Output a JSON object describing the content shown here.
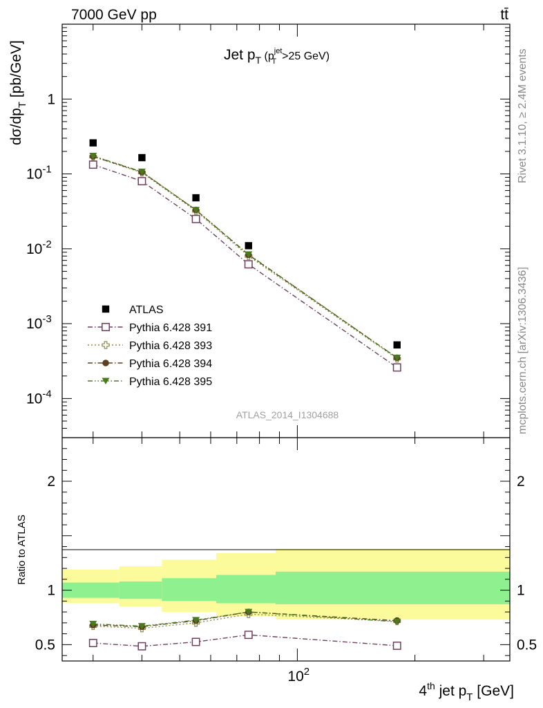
{
  "header": {
    "left": "7000 GeV pp",
    "right": "tt̄"
  },
  "side_labels": {
    "rivet": "Rivet 3.1.10, ≥ 2.4M events",
    "mcplots": "mcplots.cern.ch [arXiv:1306.3436]"
  },
  "chart_data": [
    {
      "type": "scatter",
      "panel": "main",
      "title": "Jet pT (pTjet>25 GeV)",
      "title_main": "Jet p",
      "title_sub": "T",
      "title_paren_open": " (p",
      "title_paren_sup": "jet",
      "title_paren_sub": "T",
      "title_paren_tail": ">25 GeV)",
      "ylabel": "dσ/dpT [pb/GeV]",
      "ylabel_main": "dσ/dp",
      "ylabel_sub": "T",
      "ylabel_tail": " [pb/GeV]",
      "xlabel": "4th jet pT [GeV]",
      "x_scale": "log",
      "y_scale": "log",
      "xlim": [
        25,
        350
      ],
      "ylim": [
        3e-05,
        10
      ],
      "legend_position": "bottom-left",
      "watermark": "ATLAS_2014_I1304688",
      "x": [
        30,
        40,
        55,
        75,
        180
      ],
      "series": [
        {
          "name": "ATLAS",
          "color": "#000000",
          "marker": "square-filled",
          "line": "none",
          "values": [
            0.26,
            0.165,
            0.048,
            0.011,
            0.00052
          ]
        },
        {
          "name": "Pythia 6.428 391",
          "color": "#6b3f5b",
          "marker": "square-open",
          "line": "dashdot",
          "values": [
            0.133,
            0.08,
            0.025,
            0.0062,
            0.00026
          ]
        },
        {
          "name": "Pythia 6.428 393",
          "color": "#8c8c4a",
          "marker": "cross-open",
          "line": "dotted",
          "values": [
            0.17,
            0.104,
            0.032,
            0.008,
            0.00034
          ]
        },
        {
          "name": "Pythia 6.428 394",
          "color": "#5a4021",
          "marker": "circle-filled",
          "line": "dashdot",
          "values": [
            0.172,
            0.106,
            0.033,
            0.0083,
            0.00035
          ]
        },
        {
          "name": "Pythia 6.428 395",
          "color": "#4a7a1e",
          "marker": "triangle-down-filled",
          "line": "dashdotdot",
          "values": [
            0.174,
            0.107,
            0.033,
            0.0084,
            0.00035
          ]
        }
      ]
    },
    {
      "type": "line",
      "panel": "ratio",
      "ylabel": "Ratio to ATLAS",
      "x_scale": "log",
      "xlim": [
        25,
        350
      ],
      "ylim": [
        0.35,
        2.4
      ],
      "bins": [
        {
          "lo": 25,
          "hi": 35,
          "stat_lo": 0.93,
          "stat_hi": 1.07,
          "tot_lo": 0.88,
          "tot_hi": 1.19
        },
        {
          "lo": 35,
          "hi": 45,
          "stat_lo": 0.92,
          "stat_hi": 1.08,
          "tot_lo": 0.85,
          "tot_hi": 1.22
        },
        {
          "lo": 45,
          "hi": 62,
          "stat_lo": 0.9,
          "stat_hi": 1.11,
          "tot_lo": 0.8,
          "tot_hi": 1.28
        },
        {
          "lo": 62,
          "hi": 88,
          "stat_lo": 0.88,
          "stat_hi": 1.14,
          "tot_lo": 0.76,
          "tot_hi": 1.34
        },
        {
          "lo": 88,
          "hi": 350,
          "stat_lo": 0.87,
          "stat_hi": 1.17,
          "tot_lo": 0.73,
          "tot_hi": 1.38
        }
      ],
      "x": [
        30,
        40,
        55,
        75,
        180
      ],
      "series": [
        {
          "name": "Pythia 6.428 391",
          "values": [
            0.515,
            0.485,
            0.525,
            0.59,
            0.49
          ]
        },
        {
          "name": "Pythia 6.428 393",
          "values": [
            0.67,
            0.65,
            0.7,
            0.78,
            0.715
          ]
        },
        {
          "name": "Pythia 6.428 394",
          "values": [
            0.68,
            0.665,
            0.72,
            0.8,
            0.72
          ]
        },
        {
          "name": "Pythia 6.428 395",
          "values": [
            0.69,
            0.67,
            0.725,
            0.8,
            0.71
          ]
        }
      ],
      "colors": {
        "stat_band": "#8ef08e",
        "total_band": "#fbfb9c"
      }
    }
  ]
}
